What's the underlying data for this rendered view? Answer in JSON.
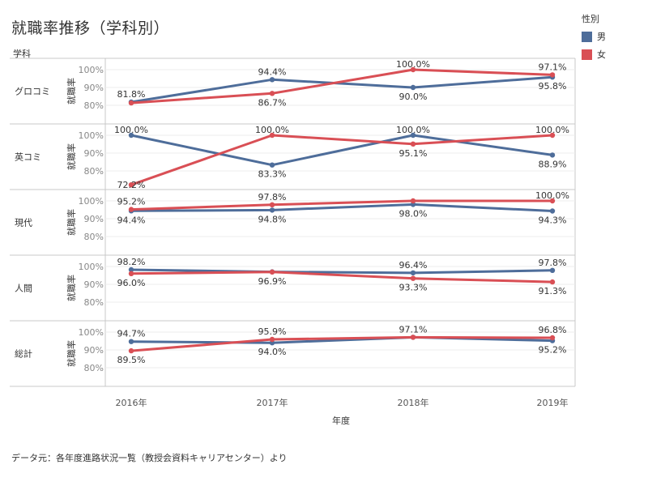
{
  "title": "就職率推移（学科別）",
  "facet_header": "学科",
  "legend": {
    "title": "性別",
    "items": [
      {
        "label": "男",
        "color": "#4e6d9a"
      },
      {
        "label": "女",
        "color": "#d94f55"
      }
    ]
  },
  "source_note": "データ元：各年度進路状況一覧（教授会資料キャリアセンター）より",
  "chart_data": {
    "type": "line",
    "xlabel": "年度",
    "ylabel": "就職率",
    "categories": [
      "2016年",
      "2017年",
      "2018年",
      "2019年"
    ],
    "yticks": [
      "100%",
      "90%",
      "80%"
    ],
    "facets": [
      {
        "name": "グロコミ",
        "series": [
          {
            "name": "男",
            "values": [
              81.8,
              94.4,
              90.0,
              95.8
            ],
            "labels": [
              "81.8%",
              "94.4%",
              "90.0%",
              "95.8%"
            ]
          },
          {
            "name": "女",
            "values": [
              81.3,
              86.7,
              100.0,
              97.1
            ],
            "labels": [
              "",
              "86.7%",
              "100.0%",
              "97.1%"
            ]
          }
        ]
      },
      {
        "name": "英コミ",
        "series": [
          {
            "name": "男",
            "values": [
              100.0,
              83.3,
              100.0,
              88.9
            ],
            "labels": [
              "100.0%",
              "83.3%",
              "100.0%",
              "88.9%"
            ]
          },
          {
            "name": "女",
            "values": [
              72.2,
              100.0,
              95.1,
              100.0
            ],
            "labels": [
              "72.2%",
              "100.0%",
              "95.1%",
              "100.0%"
            ]
          }
        ]
      },
      {
        "name": "現代",
        "series": [
          {
            "name": "男",
            "values": [
              94.4,
              94.8,
              98.0,
              94.3
            ],
            "labels": [
              "94.4%",
              "94.8%",
              "98.0%",
              "94.3%"
            ]
          },
          {
            "name": "女",
            "values": [
              95.2,
              97.8,
              100.0,
              100.0
            ],
            "labels": [
              "95.2%",
              "97.8%",
              "",
              "100.0%"
            ]
          }
        ]
      },
      {
        "name": "人間",
        "series": [
          {
            "name": "男",
            "values": [
              98.2,
              97.0,
              96.4,
              97.8
            ],
            "labels": [
              "98.2%",
              "",
              "96.4%",
              "97.8%"
            ]
          },
          {
            "name": "女",
            "values": [
              96.0,
              96.9,
              93.3,
              91.3
            ],
            "labels": [
              "96.0%",
              "96.9%",
              "93.3%",
              "91.3%"
            ]
          }
        ]
      },
      {
        "name": "総計",
        "series": [
          {
            "name": "男",
            "values": [
              94.7,
              94.0,
              97.1,
              95.2
            ],
            "labels": [
              "94.7%",
              "94.0%",
              "97.1%",
              "95.2%"
            ]
          },
          {
            "name": "女",
            "values": [
              89.5,
              95.9,
              97.1,
              96.8
            ],
            "labels": [
              "89.5%",
              "95.9%",
              "",
              "96.8%"
            ]
          }
        ]
      }
    ]
  }
}
